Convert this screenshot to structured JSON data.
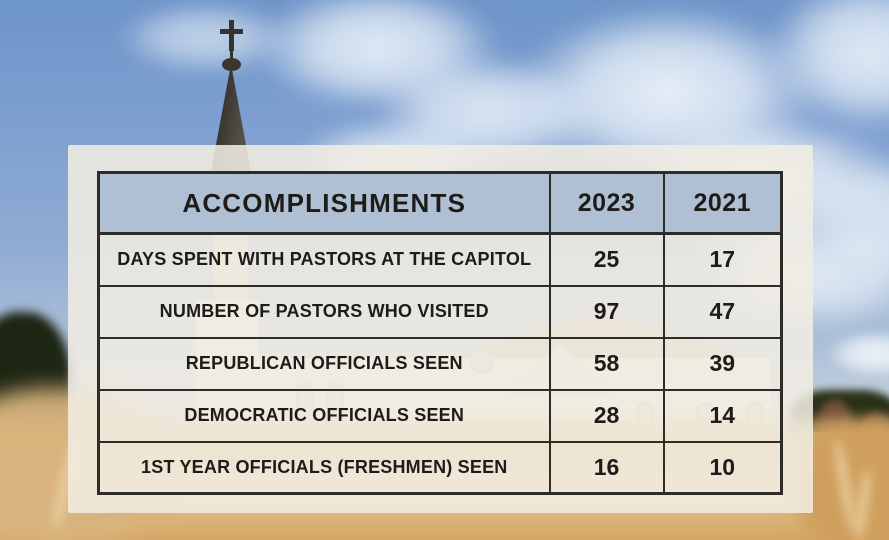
{
  "table": {
    "headers": [
      "ACCOMPLISHMENTS",
      "2023",
      "2021"
    ],
    "rows": [
      {
        "label": "DAYS SPENT WITH PASTORS AT THE CAPITOL",
        "v2023": "25",
        "v2021": "17"
      },
      {
        "label": "NUMBER OF PASTORS WHO VISITED",
        "v2023": "97",
        "v2021": "47"
      },
      {
        "label": "REPUBLICAN OFFICIALS SEEN",
        "v2023": "58",
        "v2021": "39"
      },
      {
        "label": "DEMOCRATIC OFFICIALS SEEN",
        "v2023": "28",
        "v2021": "14"
      },
      {
        "label": "1ST YEAR OFFICIALS (FRESHMEN) SEEN",
        "v2023": "16",
        "v2021": "10"
      }
    ]
  },
  "chart_data": {
    "type": "table",
    "title": "ACCOMPLISHMENTS",
    "columns": [
      "ACCOMPLISHMENTS",
      "2023",
      "2021"
    ],
    "rows": [
      [
        "DAYS SPENT WITH PASTORS AT THE CAPITOL",
        25,
        17
      ],
      [
        "NUMBER OF PASTORS WHO VISITED",
        97,
        47
      ],
      [
        "REPUBLICAN OFFICIALS SEEN",
        58,
        39
      ],
      [
        "DEMOCRATIC OFFICIALS SEEN",
        28,
        14
      ],
      [
        "1ST YEAR OFFICIALS (FRESHMEN) SEEN",
        16,
        10
      ]
    ],
    "legend_position": "none",
    "grid": true
  },
  "scene": {
    "icons": [
      "cross-icon"
    ],
    "colors": {
      "header_fill": "#b0c0d4",
      "panel_fill": "#f1ede2",
      "table_border": "#2e2c26",
      "text": "#1d1c19",
      "sky": "#7d9fd0",
      "cloud": "#eef3fa",
      "steeple": "#3b362d",
      "tree": "#1d2513",
      "wheat_field": "#dcb578"
    }
  }
}
